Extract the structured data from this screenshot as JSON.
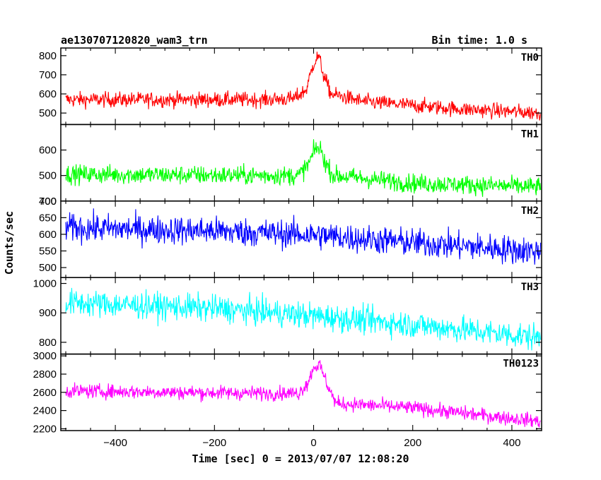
{
  "chart_data": {
    "type": "line",
    "title": "ae130707120820_wam3_trn",
    "bin_time_label": "Bin time: 1.0 s",
    "ylabel": "Counts/sec",
    "xlabel": "Time [sec] 0 = 2013/07/07 12:08:20",
    "xlim": [
      -510,
      460
    ],
    "xticks": [
      -400,
      -200,
      0,
      200,
      400
    ],
    "xticklabels": [
      "−400",
      "−200",
      "0",
      "200",
      "400"
    ],
    "grid": false,
    "panels": [
      {
        "name": "TH0",
        "color": "#ff0000",
        "ylim": [
          440,
          840
        ],
        "yticks": [
          500,
          600,
          700,
          800
        ],
        "baseline_points": [
          [
            -500,
            570
          ],
          [
            -100,
            570
          ],
          [
            -40,
            575
          ],
          [
            -15,
            620
          ],
          [
            0,
            760
          ],
          [
            10,
            800
          ],
          [
            20,
            700
          ],
          [
            35,
            600
          ],
          [
            100,
            560
          ],
          [
            300,
            520
          ],
          [
            460,
            500
          ]
        ],
        "noise": 28
      },
      {
        "name": "TH1",
        "color": "#00ff00",
        "ylim": [
          400,
          700
        ],
        "yticks": [
          400,
          500,
          600
        ],
        "baseline_points": [
          [
            -500,
            505
          ],
          [
            -100,
            500
          ],
          [
            -30,
            500
          ],
          [
            -10,
            545
          ],
          [
            5,
            610
          ],
          [
            15,
            600
          ],
          [
            25,
            545
          ],
          [
            40,
            500
          ],
          [
            200,
            470
          ],
          [
            460,
            455
          ]
        ],
        "noise": 26
      },
      {
        "name": "TH2",
        "color": "#0000ff",
        "ylim": [
          470,
          700
        ],
        "yticks": [
          500,
          550,
          600,
          650,
          700
        ],
        "baseline_points": [
          [
            -500,
            620
          ],
          [
            -200,
            610
          ],
          [
            0,
            598
          ],
          [
            200,
            575
          ],
          [
            460,
            548
          ]
        ],
        "noise": 30
      },
      {
        "name": "TH3",
        "color": "#00ffff",
        "ylim": [
          760,
          1020
        ],
        "yticks": [
          800,
          900,
          1000
        ],
        "baseline_points": [
          [
            -500,
            935
          ],
          [
            -200,
            915
          ],
          [
            0,
            890
          ],
          [
            200,
            860
          ],
          [
            460,
            815
          ]
        ],
        "noise": 32
      },
      {
        "name": "TH0123",
        "color": "#ff00ff",
        "ylim": [
          2180,
          3020
        ],
        "yticks": [
          2200,
          2400,
          2600,
          2800,
          3000
        ],
        "baseline_points": [
          [
            -500,
            2615
          ],
          [
            -100,
            2590
          ],
          [
            -30,
            2590
          ],
          [
            -10,
            2720
          ],
          [
            0,
            2880
          ],
          [
            12,
            2900
          ],
          [
            25,
            2720
          ],
          [
            45,
            2480
          ],
          [
            200,
            2430
          ],
          [
            460,
            2280
          ]
        ],
        "noise": 55
      }
    ]
  }
}
